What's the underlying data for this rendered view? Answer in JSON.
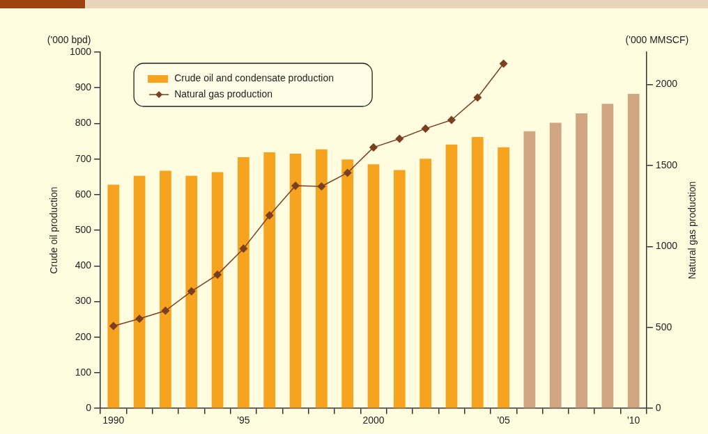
{
  "chart_data": {
    "type": "bar",
    "categories": [
      "1990",
      null,
      null,
      null,
      null,
      "'95",
      null,
      null,
      null,
      null,
      "2000",
      null,
      null,
      null,
      null,
      "'05",
      null,
      null,
      null,
      null,
      "'10"
    ],
    "ylabel": "Crude oil production",
    "y2label": "Natural gas production",
    "annotations": [
      "('000 bpd)",
      "('000 MMSCF)"
    ],
    "series": [
      {
        "name": "Crude oil and condensate production",
        "color": "#f6a41f",
        "colors": [
          "#f6a41f",
          "#f6a41f",
          "#f6a41f",
          "#f6a41f",
          "#f6a41f",
          "#f6a41f",
          "#f6a41f",
          "#f6a41f",
          "#f6a41f",
          "#f6a41f",
          "#f6a41f",
          "#f6a41f",
          "#f6a41f",
          "#f6a41f",
          "#f6a41f",
          "#f6a41f",
          "#cfa582",
          "#cfa582",
          "#cfa582",
          "#cfa582",
          "#cfa582"
        ],
        "values": [
          628,
          653,
          667,
          653,
          663,
          705,
          719,
          715,
          727,
          699,
          685,
          669,
          701,
          741,
          762,
          733,
          778,
          802,
          828,
          855,
          883
        ]
      },
      {
        "name": "Natural gas production",
        "type": "line",
        "axis": "y2",
        "color": "#7b3f22",
        "marker": "diamond",
        "values": [
          509,
          554,
          603,
          723,
          826,
          987,
          1192,
          1375,
          1371,
          1455,
          1612,
          1665,
          1728,
          1781,
          1920,
          2129,
          null,
          null,
          null,
          null,
          null
        ]
      }
    ],
    "ylim": [
      0,
      1000
    ],
    "yticks": [
      0,
      100,
      200,
      300,
      400,
      500,
      600,
      700,
      800,
      900,
      1000
    ],
    "y2lim": [
      0,
      2200
    ],
    "y2ticks": [
      0,
      500,
      1000,
      1500,
      2000
    ],
    "grid": false,
    "legend": "top left"
  }
}
